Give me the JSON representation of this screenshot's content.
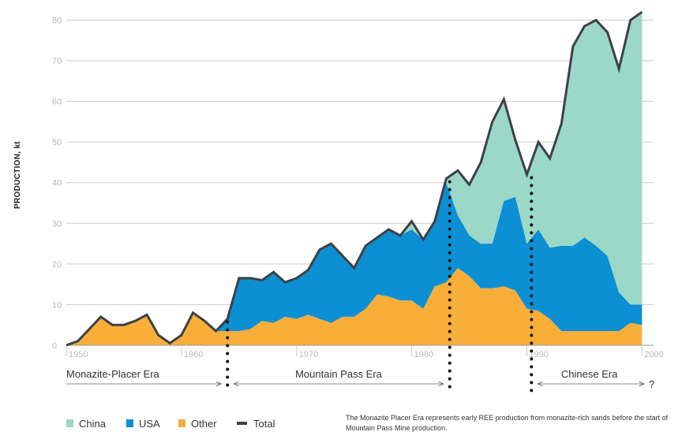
{
  "chart_data": {
    "type": "area",
    "title": "",
    "ylabel": "PRODUCTION, kt",
    "xlabel": "",
    "xlim": [
      1950,
      2001
    ],
    "ylim": [
      0,
      83
    ],
    "xticks": [
      1950,
      1960,
      1970,
      1980,
      1990,
      2000
    ],
    "yticks": [
      0,
      10,
      20,
      30,
      40,
      50,
      60,
      70,
      80
    ],
    "grid": "horizontal",
    "legend_position": "bottom-left",
    "x": [
      1950,
      1951,
      1952,
      1953,
      1954,
      1955,
      1956,
      1957,
      1958,
      1959,
      1960,
      1961,
      1962,
      1963,
      1964,
      1965,
      1966,
      1967,
      1968,
      1969,
      1970,
      1971,
      1972,
      1973,
      1974,
      1975,
      1976,
      1977,
      1978,
      1979,
      1980,
      1981,
      1982,
      1983,
      1984,
      1985,
      1986,
      1987,
      1988,
      1989,
      1990,
      1991,
      1992,
      1993,
      1994,
      1995,
      1996,
      1997,
      1998,
      1999,
      2000
    ],
    "series": [
      {
        "name": "Other",
        "color": "#f9ae3a",
        "kind": "area",
        "values": [
          0,
          1,
          4,
          7,
          5,
          5,
          6,
          7.5,
          2.5,
          0.5,
          2.5,
          8,
          6,
          3.5,
          3.5,
          3.5,
          4,
          6,
          5.5,
          7,
          6.5,
          7.5,
          6.5,
          5.5,
          7,
          7,
          9,
          12.5,
          12,
          11,
          11,
          9,
          14.5,
          15.5,
          19,
          17,
          14,
          14,
          14.5,
          13.5,
          9,
          8.5,
          6.5,
          3.5,
          3.5,
          3.5,
          3.5,
          3.5,
          3.5,
          5.5,
          5
        ]
      },
      {
        "name": "USA",
        "color": "#0c8fd3",
        "kind": "area",
        "values": [
          0,
          0,
          0,
          0,
          0,
          0,
          0,
          0,
          0,
          0,
          0,
          0,
          0,
          0,
          3,
          13,
          12.5,
          10,
          12.5,
          8.5,
          10,
          11,
          17,
          19.5,
          15,
          12,
          15.5,
          14,
          16.5,
          16,
          17.5,
          17,
          16,
          24.5,
          13,
          10,
          11,
          11,
          21,
          23,
          16,
          20,
          17.5,
          21,
          21,
          23,
          21,
          18.5,
          9.5,
          4.5,
          5
        ]
      },
      {
        "name": "China",
        "color": "#9bd8c8",
        "kind": "area",
        "values": [
          0,
          0,
          0,
          0,
          0,
          0,
          0,
          0,
          0,
          0,
          0,
          0,
          0,
          0,
          0,
          0,
          0,
          0,
          0,
          0,
          0,
          0,
          0,
          0,
          0,
          0,
          0,
          0,
          0,
          0,
          2,
          0,
          0,
          1,
          11,
          12.5,
          20,
          30,
          25,
          14,
          17,
          21.5,
          22,
          30,
          49,
          52,
          55.5,
          55,
          55,
          70,
          72
        ]
      },
      {
        "name": "Total",
        "color": "#3d4145",
        "kind": "line",
        "values": [
          0,
          1,
          4,
          7,
          5,
          5,
          6,
          7.5,
          2.5,
          0.5,
          2.5,
          8,
          6,
          3.5,
          6.5,
          16.5,
          16.5,
          16,
          18,
          15.5,
          16.5,
          18.5,
          23.5,
          25,
          22,
          19,
          24.5,
          26.5,
          28.5,
          27,
          30.5,
          26,
          30.5,
          41,
          43,
          39.5,
          45,
          55,
          60.5,
          50.5,
          42,
          50,
          46,
          54.5,
          73.5,
          78.5,
          80,
          77,
          68,
          80,
          82
        ]
      }
    ],
    "eras": [
      {
        "label": "Monazite-Placer Era",
        "start": 1950,
        "end": 1964
      },
      {
        "label": "Mountain Pass Era",
        "start": 1964,
        "end": 1983.3
      },
      {
        "label": "Chinese Era",
        "start": 1990.4,
        "end": 2001,
        "open_end_mark": "?"
      }
    ],
    "era_dividers": [
      1964,
      1983.3,
      1990.4
    ],
    "legend": [
      {
        "label": "China",
        "color": "#9bd8c8",
        "kind": "swatch"
      },
      {
        "label": "USA",
        "color": "#0c8fd3",
        "kind": "swatch"
      },
      {
        "label": "Other",
        "color": "#f9ae3a",
        "kind": "swatch"
      },
      {
        "label": "Total",
        "color": "#3d4145",
        "kind": "line"
      }
    ],
    "note": "The Monazite Placer Era represents early REE production from monazite-rich sands before the start of Mountain Pass Mine production."
  }
}
